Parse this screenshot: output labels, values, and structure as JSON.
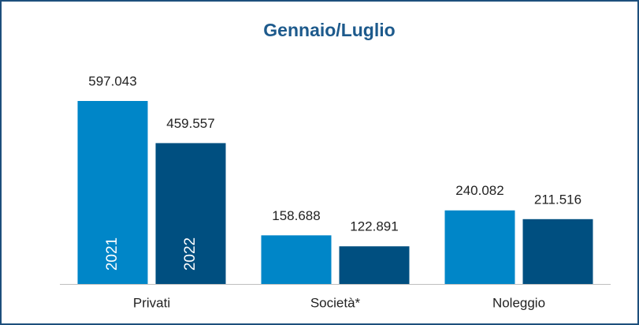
{
  "chart_data": {
    "type": "bar",
    "title": "Gennaio/Luglio",
    "categories": [
      "Privati",
      "Società*",
      "Noleggio"
    ],
    "series": [
      {
        "name": "2021",
        "color": "#0086c8",
        "values": [
          597043,
          158688,
          240082
        ],
        "value_labels": [
          "597.043",
          "158.688",
          "240.082"
        ]
      },
      {
        "name": "2022",
        "color": "#004f80",
        "values": [
          459557,
          122891,
          211516
        ],
        "value_labels": [
          "459.557",
          "122.891",
          "211.516"
        ]
      }
    ]
  }
}
